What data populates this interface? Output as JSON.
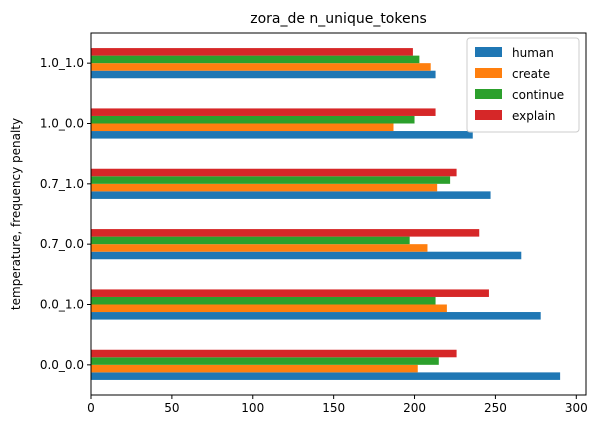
{
  "chart_data": {
    "type": "bar",
    "orientation": "horizontal",
    "title": "zora_de n_unique_tokens",
    "xlabel": "",
    "ylabel": "temperature, frequency penalty",
    "categories": [
      "0.0_0.0",
      "0.0_1.0",
      "0.7_0.0",
      "0.7_1.0",
      "1.0_0.0",
      "1.0_1.0"
    ],
    "xlim": [
      0,
      306
    ],
    "xticks": [
      0,
      50,
      100,
      150,
      200,
      250,
      300
    ],
    "grid": false,
    "legend_position": "top-right",
    "series": [
      {
        "name": "human",
        "color": "#1f77b4",
        "values": [
          290,
          278,
          266,
          247,
          236,
          213
        ]
      },
      {
        "name": "create",
        "color": "#ff7f0e",
        "values": [
          202,
          220,
          208,
          214,
          187,
          210
        ]
      },
      {
        "name": "continue",
        "color": "#2ca02c",
        "values": [
          215,
          213,
          197,
          222,
          200,
          203
        ]
      },
      {
        "name": "explain",
        "color": "#d62728",
        "values": [
          226,
          246,
          240,
          226,
          213,
          199
        ]
      }
    ]
  }
}
